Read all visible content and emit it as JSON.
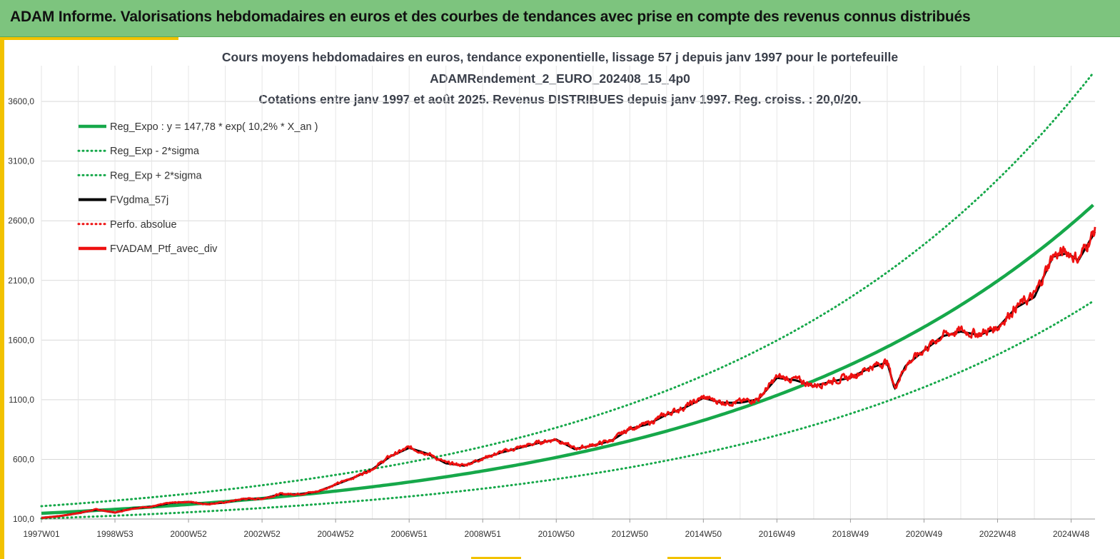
{
  "header": {
    "title": "ADAM Informe. Valorisations hebdomadaires en euros et des courbes de tendances avec prise en compte des revenus connus distribués"
  },
  "colors": {
    "header_bg": "#7dc47e",
    "accent": "#f2c200",
    "green": "#16a84a",
    "red": "#ee1111",
    "black": "#000000"
  },
  "chart_data": {
    "type": "line",
    "title_lines": [
      "Cours moyens hebdomadaires  en euros, tendance exponentielle, lissage 57 j depuis janv 1997 pour le portefeuille",
      "ADAMRendement_2_EURO_202408_15_4p0",
      "Cotations  entre janv 1997 et août 2025. Revenus DISTRIBUES depuis janv 1997. Reg. croiss. : 20,0/20."
    ],
    "xlabel": "",
    "ylabel": "",
    "ylim": [
      100,
      3900
    ],
    "xlim": [
      1997.0,
      2025.65
    ],
    "yticks": [
      100,
      600,
      1100,
      1600,
      2100,
      2600,
      3100,
      3600
    ],
    "ytick_labels": [
      "100,0",
      "600,0",
      "1100,0",
      "1600,0",
      "2100,0",
      "2600,0",
      "3100,0",
      "3600,0"
    ],
    "xticks": [
      1997.0,
      1999.0,
      2001.0,
      2003.0,
      2005.0,
      2007.0,
      2009.0,
      2011.0,
      2013.0,
      2015.0,
      2017.0,
      2019.0,
      2021.0,
      2023.0,
      2025.0
    ],
    "xtick_labels": [
      "1997W01",
      "1998W53",
      "2000W52",
      "2002W52",
      "2004W52",
      "2006W51",
      "2008W51",
      "2010W50",
      "2012W50",
      "2014W50",
      "2016W49",
      "2018W49",
      "2020W49",
      "2022W48",
      "2024W48"
    ],
    "grid": true,
    "legend_position": "top-left",
    "regression": {
      "a": 147.78,
      "rate": 0.102,
      "sigma_factor_upper": 1.405,
      "sigma_factor_lower": 0.705
    },
    "series": [
      {
        "name": "Reg_Expo : y = 147,78 * exp( 10,2% *  X_an )",
        "style": "solid-thick",
        "color": "#16a84a",
        "kind": "regression"
      },
      {
        "name": "Reg_Exp - 2*sigma",
        "style": "dotted",
        "color": "#16a84a",
        "kind": "lower"
      },
      {
        "name": "Reg_Exp + 2*sigma",
        "style": "dotted",
        "color": "#16a84a",
        "kind": "upper"
      },
      {
        "name": "FVgdma_57j",
        "style": "solid",
        "color": "#000000",
        "kind": "smooth"
      },
      {
        "name": "Perfo. absolue",
        "style": "dotted",
        "color": "#ee1111",
        "kind": "none"
      },
      {
        "name": "FVADAM_Ptf_avec_div",
        "style": "solid-thick",
        "color": "#ee1111",
        "kind": "price"
      }
    ],
    "price_points": {
      "x": [
        1997.0,
        1997.5,
        1998.0,
        1998.5,
        1999.0,
        1999.5,
        2000.0,
        2000.5,
        2001.0,
        2001.5,
        2002.0,
        2002.5,
        2003.0,
        2003.5,
        2004.0,
        2004.5,
        2005.0,
        2005.5,
        2006.0,
        2006.5,
        2007.0,
        2007.5,
        2008.0,
        2008.5,
        2009.0,
        2009.5,
        2010.0,
        2010.5,
        2011.0,
        2011.5,
        2012.0,
        2012.5,
        2013.0,
        2013.5,
        2014.0,
        2014.5,
        2015.0,
        2015.5,
        2016.0,
        2016.5,
        2017.0,
        2017.5,
        2018.0,
        2018.5,
        2019.0,
        2019.5,
        2020.0,
        2020.2,
        2020.5,
        2021.0,
        2021.5,
        2022.0,
        2022.5,
        2023.0,
        2023.5,
        2024.0,
        2024.5,
        2024.9,
        2025.2,
        2025.65
      ],
      "y": [
        110,
        125,
        150,
        180,
        155,
        190,
        205,
        235,
        245,
        225,
        240,
        270,
        270,
        310,
        310,
        330,
        390,
        450,
        520,
        630,
        700,
        650,
        570,
        550,
        610,
        660,
        700,
        740,
        770,
        690,
        720,
        760,
        860,
        900,
        980,
        1040,
        1120,
        1080,
        1080,
        1110,
        1290,
        1270,
        1220,
        1260,
        1290,
        1370,
        1420,
        1200,
        1390,
        1520,
        1640,
        1680,
        1650,
        1710,
        1880,
        1970,
        2310,
        2340,
        2280,
        2520
      ]
    }
  }
}
